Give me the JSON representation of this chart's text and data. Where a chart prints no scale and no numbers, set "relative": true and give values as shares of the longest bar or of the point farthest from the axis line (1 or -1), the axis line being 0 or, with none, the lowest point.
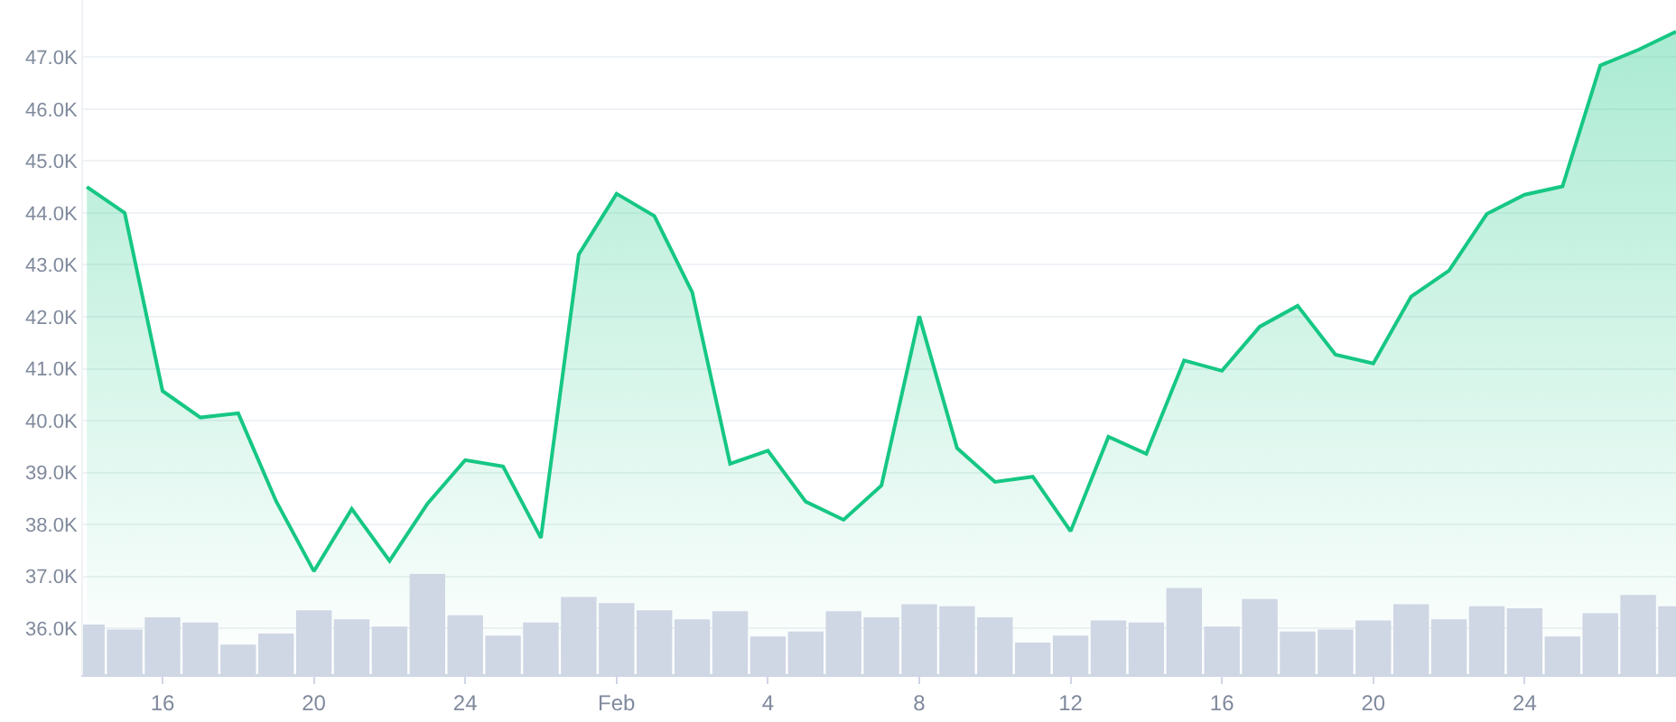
{
  "chart_data": [
    {
      "type": "area",
      "categories": [
        null,
        null,
        null,
        null,
        null,
        null,
        null,
        null,
        null,
        null,
        null,
        null,
        null,
        null,
        null,
        null,
        null,
        null,
        null,
        null,
        null,
        null,
        null,
        null,
        null,
        null,
        null,
        null,
        null,
        null,
        null,
        null,
        null,
        null,
        null,
        null,
        null,
        null,
        null,
        null,
        null,
        null,
        null
      ],
      "series": [
        {
          "color": "#16c784",
          "values": [
            44500,
            44000,
            40570,
            40060,
            40140,
            38450,
            37100,
            38300,
            37300,
            38400,
            39240,
            39120,
            37740,
            43200,
            44370,
            43940,
            42470,
            39170,
            39420,
            38440,
            38090,
            38750,
            42010,
            39470,
            38820,
            38920,
            37870,
            39690,
            39360,
            41160,
            40960,
            41810,
            42210,
            41270,
            41100,
            42390,
            42890,
            43980,
            44350,
            44510,
            46840,
            47140,
            47490
          ]
        }
      ],
      "ylim": [
        35100,
        48100
      ],
      "yticks": [
        {
          "value": 36000,
          "label": "36.0K"
        },
        {
          "value": 37000,
          "label": "37.0K"
        },
        {
          "value": 38000,
          "label": "38.0K"
        },
        {
          "value": 39000,
          "label": "39.0K"
        },
        {
          "value": 40000,
          "label": "40.0K"
        },
        {
          "value": 41000,
          "label": "41.0K"
        },
        {
          "value": 42000,
          "label": "42.0K"
        },
        {
          "value": 43000,
          "label": "43.0K"
        },
        {
          "value": 44000,
          "label": "44.0K"
        },
        {
          "value": 45000,
          "label": "45.0K"
        },
        {
          "value": 46000,
          "label": "46.0K"
        },
        {
          "value": 47000,
          "label": "47.0K"
        }
      ],
      "grid": "y",
      "marker": "none",
      "line_style": "solid"
    },
    {
      "type": "bar",
      "relative": true,
      "categories": [
        null,
        null,
        "16",
        null,
        null,
        null,
        "20",
        null,
        null,
        null,
        "24",
        null,
        null,
        null,
        "Feb",
        null,
        null,
        null,
        "4",
        null,
        null,
        null,
        "8",
        null,
        null,
        null,
        "12",
        null,
        null,
        null,
        "16",
        null,
        null,
        null,
        "20",
        null,
        null,
        null,
        "24",
        null,
        null,
        null,
        null
      ],
      "series": [
        {
          "color": "#cfd6e4",
          "values": [
            0.5,
            0.45,
            0.57,
            0.52,
            0.3,
            0.41,
            0.64,
            0.55,
            0.48,
            1,
            0.59,
            0.39,
            0.52,
            0.77,
            0.71,
            0.64,
            0.55,
            0.63,
            0.38,
            0.43,
            0.63,
            0.57,
            0.7,
            0.68,
            0.57,
            0.32,
            0.39,
            0.54,
            0.52,
            0.86,
            0.48,
            0.75,
            0.43,
            0.45,
            0.54,
            0.7,
            0.55,
            0.68,
            0.66,
            0.38,
            0.61,
            0.79,
            0.68
          ]
        }
      ]
    }
  ]
}
